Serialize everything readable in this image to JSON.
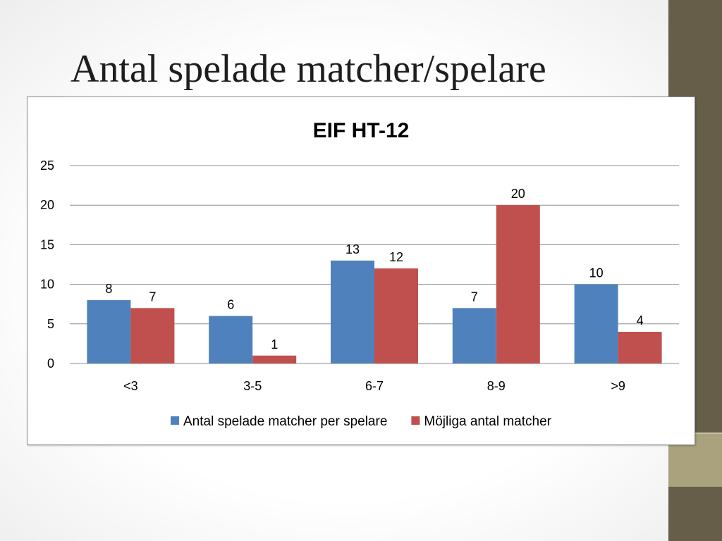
{
  "slide": {
    "title": "Antal spelade matcher/spelare"
  },
  "colors": {
    "series_1": "#4f81bd",
    "series_2": "#c0504d",
    "sidebar": "#665e49",
    "sidebar_accent": "#a9a27c"
  },
  "chart_data": {
    "type": "bar",
    "title": "EIF HT-12",
    "categories": [
      "<3",
      "3-5",
      "6-7",
      "8-9",
      ">9"
    ],
    "series": [
      {
        "name": "Antal spelade matcher per spelare",
        "values": [
          8,
          6,
          13,
          7,
          10
        ]
      },
      {
        "name": "Möjliga antal matcher",
        "values": [
          7,
          1,
          12,
          20,
          4
        ]
      }
    ],
    "ylim": [
      0,
      25
    ],
    "yticks": [
      0,
      5,
      10,
      15,
      20,
      25
    ],
    "grid": true,
    "data_labels": true,
    "legend_position": "bottom"
  }
}
